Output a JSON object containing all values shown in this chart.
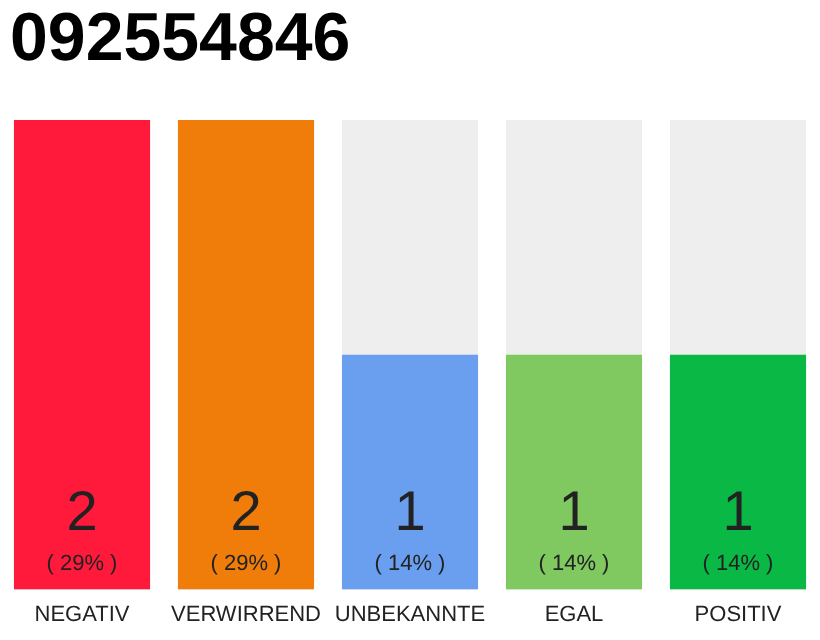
{
  "chart_data": {
    "type": "bar",
    "title": "092554846",
    "categories": [
      "NEGATIV",
      "VERWIRREND",
      "UNBEKANNTE",
      "EGAL",
      "POSITIV"
    ],
    "values": [
      2,
      2,
      1,
      1,
      1
    ],
    "colors": [
      "#ff1a3c",
      "#f07d0a",
      "#6a9ff0",
      "#80c860",
      "#0ab846"
    ],
    "value_labels": [
      "2\n( 29% )",
      "2\n( 29% )",
      "1\n( 14% )",
      "1\n( 14% )",
      "1\n( 14% )"
    ],
    "tick_labels": "x",
    "grid": false,
    "legend": false
  }
}
